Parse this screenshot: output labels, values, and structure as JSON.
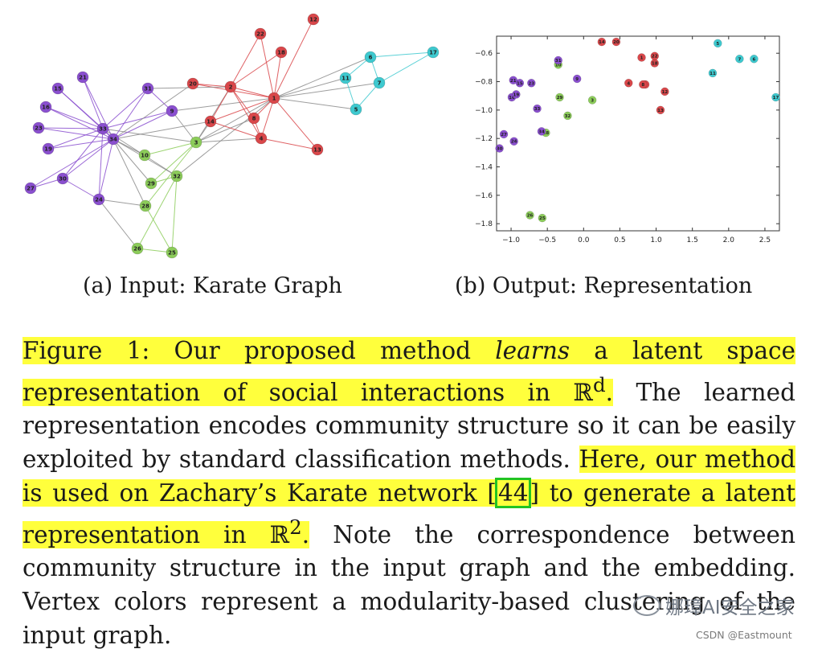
{
  "figure": {
    "subcaption_a": "(a) Input: Karate Graph",
    "subcaption_b": "(b) Output: Representation",
    "caption": {
      "seg1": "Figure 1: Our proposed method ",
      "seg1_em": "learns",
      "seg2": " a latent space representation of social interactions in ",
      "r_symbol": "ℝ",
      "sup_d": "d",
      "seg3": ".",
      "seg4": " The learned representation encodes community structure so it can be easily exploited by standard classification methods. ",
      "seg5": "Here, our method is used on Zachary’s Karate network [",
      "ref": "44",
      "seg6": "] to generate a latent representation in ",
      "r_symbol2": "ℝ",
      "sup_2": "2",
      "seg7": ".",
      "seg8": " Note the correspondence between community structure in the input graph and the embedding. Vertex colors represent a modularity-based clustering of the input graph."
    }
  },
  "colors": {
    "purple": "#8a4fcf",
    "red": "#d9474a",
    "green": "#8ccc5a",
    "cyan": "#3ec9cf",
    "highlight": "#ffff3c",
    "ref_box": "#22c422"
  },
  "chart_data": {
    "type": "scatter",
    "title": "",
    "xlabel": "",
    "ylabel": "",
    "xlim": [
      -1.2,
      2.7
    ],
    "ylim": [
      -1.85,
      -0.48
    ],
    "xticks": [
      -1.0,
      -0.5,
      0.0,
      0.5,
      1.0,
      1.5,
      2.0,
      2.5
    ],
    "yticks": [
      -0.6,
      -0.8,
      -1.0,
      -1.2,
      -1.4,
      -1.6,
      -1.8
    ],
    "points": [
      {
        "id": "1",
        "x": 0.8,
        "y": -0.63,
        "community": "red"
      },
      {
        "id": "2",
        "x": 0.85,
        "y": -0.82,
        "community": "red"
      },
      {
        "id": "3",
        "x": 0.12,
        "y": -0.93,
        "community": "green"
      },
      {
        "id": "4",
        "x": 0.62,
        "y": -0.81,
        "community": "red"
      },
      {
        "id": "5",
        "x": 1.85,
        "y": -0.53,
        "community": "cyan"
      },
      {
        "id": "6",
        "x": 2.35,
        "y": -0.64,
        "community": "cyan"
      },
      {
        "id": "7",
        "x": 2.15,
        "y": -0.64,
        "community": "cyan"
      },
      {
        "id": "8",
        "x": 0.82,
        "y": -0.82,
        "community": "red"
      },
      {
        "id": "9",
        "x": -0.09,
        "y": -0.78,
        "community": "purple"
      },
      {
        "id": "10",
        "x": -0.35,
        "y": -0.68,
        "community": "green"
      },
      {
        "id": "11",
        "x": 1.78,
        "y": -0.74,
        "community": "cyan"
      },
      {
        "id": "12",
        "x": 1.12,
        "y": -0.87,
        "community": "red"
      },
      {
        "id": "13",
        "x": 1.06,
        "y": -1.0,
        "community": "red"
      },
      {
        "id": "14",
        "x": 0.25,
        "y": -0.52,
        "community": "red"
      },
      {
        "id": "15",
        "x": -0.88,
        "y": -0.81,
        "community": "purple"
      },
      {
        "id": "16",
        "x": -0.99,
        "y": -0.91,
        "community": "purple"
      },
      {
        "id": "17",
        "x": 2.65,
        "y": -0.91,
        "community": "cyan"
      },
      {
        "id": "18",
        "x": 0.98,
        "y": -0.67,
        "community": "red"
      },
      {
        "id": "19",
        "x": -0.93,
        "y": -0.89,
        "community": "purple"
      },
      {
        "id": "20",
        "x": 0.45,
        "y": -0.52,
        "community": "red"
      },
      {
        "id": "21",
        "x": -0.97,
        "y": -0.79,
        "community": "purple"
      },
      {
        "id": "22",
        "x": 0.98,
        "y": -0.62,
        "community": "red"
      },
      {
        "id": "23",
        "x": -0.72,
        "y": -0.81,
        "community": "purple"
      },
      {
        "id": "24",
        "x": -0.96,
        "y": -1.22,
        "community": "purple"
      },
      {
        "id": "25",
        "x": -0.57,
        "y": -1.76,
        "community": "green"
      },
      {
        "id": "26",
        "x": -0.74,
        "y": -1.74,
        "community": "green"
      },
      {
        "id": "27",
        "x": -1.1,
        "y": -1.17,
        "community": "purple"
      },
      {
        "id": "28",
        "x": -0.52,
        "y": -1.16,
        "community": "green"
      },
      {
        "id": "29",
        "x": -0.33,
        "y": -0.91,
        "community": "green"
      },
      {
        "id": "30",
        "x": -1.16,
        "y": -1.27,
        "community": "purple"
      },
      {
        "id": "31",
        "x": -0.35,
        "y": -0.65,
        "community": "purple"
      },
      {
        "id": "32",
        "x": -0.22,
        "y": -1.04,
        "community": "green"
      },
      {
        "id": "33",
        "x": -0.64,
        "y": -0.99,
        "community": "purple"
      },
      {
        "id": "34",
        "x": -0.58,
        "y": -1.15,
        "community": "purple"
      }
    ]
  },
  "graph": {
    "nodes": [
      {
        "id": "1",
        "community": "red"
      },
      {
        "id": "2",
        "community": "red"
      },
      {
        "id": "3",
        "community": "green"
      },
      {
        "id": "4",
        "community": "red"
      },
      {
        "id": "5",
        "community": "cyan"
      },
      {
        "id": "6",
        "community": "cyan"
      },
      {
        "id": "7",
        "community": "cyan"
      },
      {
        "id": "8",
        "community": "red"
      },
      {
        "id": "9",
        "community": "purple"
      },
      {
        "id": "10",
        "community": "green"
      },
      {
        "id": "11",
        "community": "cyan"
      },
      {
        "id": "12",
        "community": "red"
      },
      {
        "id": "13",
        "community": "red"
      },
      {
        "id": "14",
        "community": "red"
      },
      {
        "id": "15",
        "community": "purple"
      },
      {
        "id": "16",
        "community": "purple"
      },
      {
        "id": "17",
        "community": "cyan"
      },
      {
        "id": "18",
        "community": "red"
      },
      {
        "id": "19",
        "community": "purple"
      },
      {
        "id": "20",
        "community": "red"
      },
      {
        "id": "21",
        "community": "purple"
      },
      {
        "id": "22",
        "community": "red"
      },
      {
        "id": "23",
        "community": "purple"
      },
      {
        "id": "24",
        "community": "purple"
      },
      {
        "id": "25",
        "community": "green"
      },
      {
        "id": "26",
        "community": "green"
      },
      {
        "id": "27",
        "community": "purple"
      },
      {
        "id": "28",
        "community": "green"
      },
      {
        "id": "29",
        "community": "green"
      },
      {
        "id": "30",
        "community": "purple"
      },
      {
        "id": "31",
        "community": "purple"
      },
      {
        "id": "32",
        "community": "green"
      },
      {
        "id": "33",
        "community": "purple"
      },
      {
        "id": "34",
        "community": "purple"
      }
    ],
    "edges": [
      [
        "1",
        "2"
      ],
      [
        "1",
        "3"
      ],
      [
        "1",
        "4"
      ],
      [
        "1",
        "5"
      ],
      [
        "1",
        "6"
      ],
      [
        "1",
        "7"
      ],
      [
        "1",
        "8"
      ],
      [
        "1",
        "9"
      ],
      [
        "1",
        "11"
      ],
      [
        "1",
        "12"
      ],
      [
        "1",
        "13"
      ],
      [
        "1",
        "14"
      ],
      [
        "1",
        "18"
      ],
      [
        "1",
        "20"
      ],
      [
        "1",
        "22"
      ],
      [
        "1",
        "32"
      ],
      [
        "2",
        "3"
      ],
      [
        "2",
        "4"
      ],
      [
        "2",
        "8"
      ],
      [
        "2",
        "14"
      ],
      [
        "2",
        "18"
      ],
      [
        "2",
        "20"
      ],
      [
        "2",
        "22"
      ],
      [
        "2",
        "31"
      ],
      [
        "3",
        "4"
      ],
      [
        "3",
        "8"
      ],
      [
        "3",
        "9"
      ],
      [
        "3",
        "10"
      ],
      [
        "3",
        "14"
      ],
      [
        "3",
        "28"
      ],
      [
        "3",
        "29"
      ],
      [
        "3",
        "33"
      ],
      [
        "4",
        "8"
      ],
      [
        "4",
        "13"
      ],
      [
        "4",
        "14"
      ],
      [
        "5",
        "7"
      ],
      [
        "5",
        "11"
      ],
      [
        "6",
        "7"
      ],
      [
        "6",
        "11"
      ],
      [
        "6",
        "17"
      ],
      [
        "7",
        "17"
      ],
      [
        "9",
        "31"
      ],
      [
        "9",
        "33"
      ],
      [
        "9",
        "34"
      ],
      [
        "10",
        "34"
      ],
      [
        "14",
        "34"
      ],
      [
        "15",
        "33"
      ],
      [
        "15",
        "34"
      ],
      [
        "16",
        "33"
      ],
      [
        "16",
        "34"
      ],
      [
        "19",
        "33"
      ],
      [
        "19",
        "34"
      ],
      [
        "20",
        "34"
      ],
      [
        "21",
        "33"
      ],
      [
        "21",
        "34"
      ],
      [
        "23",
        "33"
      ],
      [
        "23",
        "34"
      ],
      [
        "24",
        "26"
      ],
      [
        "24",
        "28"
      ],
      [
        "24",
        "30"
      ],
      [
        "24",
        "33"
      ],
      [
        "24",
        "34"
      ],
      [
        "25",
        "26"
      ],
      [
        "25",
        "28"
      ],
      [
        "25",
        "32"
      ],
      [
        "26",
        "32"
      ],
      [
        "27",
        "30"
      ],
      [
        "27",
        "34"
      ],
      [
        "28",
        "34"
      ],
      [
        "29",
        "32"
      ],
      [
        "29",
        "34"
      ],
      [
        "30",
        "33"
      ],
      [
        "30",
        "34"
      ],
      [
        "31",
        "33"
      ],
      [
        "31",
        "34"
      ],
      [
        "32",
        "33"
      ],
      [
        "32",
        "34"
      ],
      [
        "33",
        "34"
      ]
    ]
  },
  "watermark": {
    "text": "娜璋AI安全之家",
    "csdn": "CSDN @Eastmount"
  }
}
